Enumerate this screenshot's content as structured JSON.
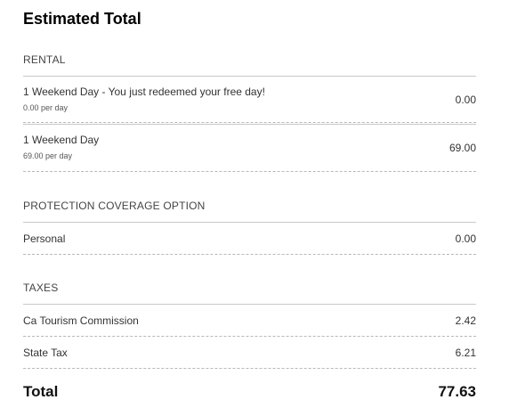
{
  "title": "Estimated Total",
  "rental": {
    "heading": "RENTAL",
    "items": [
      {
        "label": "1 Weekend Day - You just redeemed your free day!",
        "sub": "0.00 per day",
        "amount": "0.00"
      },
      {
        "label": "1 Weekend Day",
        "sub": "69.00 per day",
        "amount": "69.00"
      }
    ]
  },
  "protection": {
    "heading": "PROTECTION COVERAGE OPTION",
    "items": [
      {
        "label": "Personal",
        "amount": "0.00"
      }
    ]
  },
  "taxes": {
    "heading": "TAXES",
    "items": [
      {
        "label": "Ca Tourism Commission",
        "amount": "2.42"
      },
      {
        "label": "State Tax",
        "amount": "6.21"
      }
    ]
  },
  "total": {
    "label": "Total",
    "amount": "77.63"
  }
}
